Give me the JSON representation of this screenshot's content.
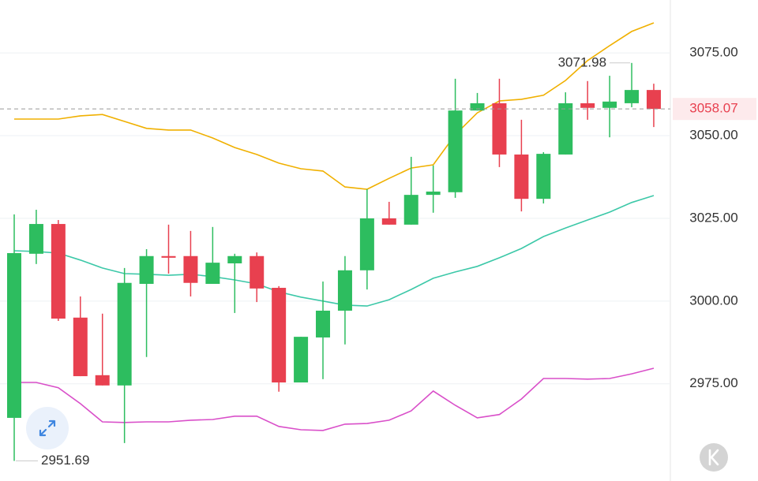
{
  "chart_data": {
    "type": "candlestick",
    "up_color": "#2dbd5f",
    "down_color": "#e8404f",
    "open": [
      2964.7,
      3014.3,
      3023.3,
      2995.0,
      2977.6,
      2974.5,
      3005.2,
      3013.6,
      3013.6,
      3005.2,
      3011.4,
      3013.6,
      3004.0,
      2975.4,
      2989.0,
      2997.1,
      3009.3,
      3025.0,
      3023.1,
      3032.1,
      3032.9,
      3057.6,
      3059.8,
      3044.3,
      3030.9,
      3044.3,
      3059.8,
      3058.4,
      3059.8,
      3063.8
    ],
    "high": [
      3026.2,
      3027.6,
      3024.5,
      3001.4,
      2996.2,
      3010.0,
      3015.7,
      3023.1,
      3021.2,
      3022.4,
      3014.3,
      3014.7,
      3004.5,
      2989.2,
      3005.9,
      3013.6,
      3033.8,
      3030.0,
      3043.6,
      3041.0,
      3067.2,
      3062.9,
      3067.2,
      3054.8,
      3045.0,
      3063.1,
      3066.5,
      3068.1,
      3071.98,
      3065.7
    ],
    "low": [
      2951.69,
      3011.2,
      2994.0,
      2977.3,
      2974.5,
      2957.1,
      2983.1,
      3008.3,
      3001.4,
      3005.2,
      2996.4,
      2999.7,
      2972.6,
      2975.4,
      2976.4,
      2986.9,
      3003.5,
      3023.1,
      3023.1,
      3026.7,
      3031.2,
      3057.6,
      3040.5,
      3027.1,
      3029.5,
      3044.3,
      3054.8,
      3049.5,
      3058.6,
      3052.6
    ],
    "close": [
      3014.5,
      3023.3,
      2994.7,
      2977.3,
      2974.5,
      3005.5,
      3013.6,
      3013.1,
      3005.5,
      3011.6,
      3013.6,
      3003.8,
      2975.4,
      2989.2,
      2997.1,
      3009.3,
      3025.0,
      3023.1,
      3032.1,
      3033.1,
      3057.6,
      3059.8,
      3044.3,
      3030.9,
      3044.5,
      3059.8,
      3058.4,
      3060.3,
      3063.8,
      3058.07
    ],
    "series": [
      {
        "color": "#f0b000",
        "values": [
          3055.0,
          3055.0,
          3055.0,
          3056.0,
          3056.4,
          3054.3,
          3052.2,
          3051.7,
          3051.7,
          3049.3,
          3046.4,
          3044.3,
          3041.7,
          3040.0,
          3039.3,
          3034.5,
          3033.8,
          3037.1,
          3040.2,
          3041.2,
          3050.3,
          3056.9,
          3060.5,
          3061.0,
          3062.2,
          3066.7,
          3072.7,
          3077.2,
          3081.5,
          3084.1
        ]
      },
      {
        "color": "#3cc8a8",
        "values": [
          3015.2,
          3015.0,
          3014.5,
          3012.4,
          3010.0,
          3008.3,
          3008.1,
          3007.8,
          3008.1,
          3007.4,
          3006.4,
          3005.2,
          3002.8,
          3001.2,
          3000.0,
          2998.8,
          2998.5,
          3000.4,
          3003.5,
          3006.9,
          3008.8,
          3010.5,
          3013.1,
          3015.9,
          3019.5,
          3022.1,
          3024.5,
          3026.9,
          3029.8,
          3031.9
        ]
      },
      {
        "color": "#d94fc9",
        "values": [
          2975.4,
          2975.4,
          2973.8,
          2969.0,
          2963.5,
          2963.3,
          2963.5,
          2963.5,
          2964.0,
          2964.2,
          2965.2,
          2965.2,
          2962.1,
          2961.1,
          2960.9,
          2962.8,
          2963.0,
          2964.0,
          2966.8,
          2972.8,
          2968.5,
          2964.7,
          2965.7,
          2970.4,
          2976.6,
          2976.6,
          2976.4,
          2976.6,
          2978.0,
          2979.7
        ]
      }
    ],
    "ylim": [
      2948,
      3091
    ],
    "yticks": [
      {
        "value": 2975,
        "label": "2975.00"
      },
      {
        "value": 3000,
        "label": "3000.00"
      },
      {
        "value": 3025,
        "label": "3025.00"
      },
      {
        "value": 3050,
        "label": "3050.00"
      },
      {
        "value": 3075,
        "label": "3075.00"
      }
    ],
    "grid": true
  }
}
